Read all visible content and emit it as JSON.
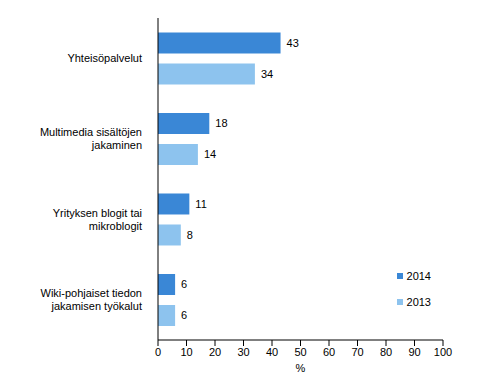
{
  "chart_data": {
    "type": "bar",
    "orientation": "horizontal",
    "categories": [
      "Yhteisöpalvelut",
      "Multimedia sisältöjen jakaminen",
      "Yrityksen blogit tai mikroblogit",
      "Wiki-pohjaiset tiedon jakamisen työkalut"
    ],
    "series": [
      {
        "name": "2014",
        "color": "#3a87d6",
        "values": [
          43,
          18,
          11,
          6
        ]
      },
      {
        "name": "2013",
        "color": "#8dc3ee",
        "values": [
          34,
          14,
          8,
          6
        ]
      }
    ],
    "xlabel": "%",
    "xlim": [
      0,
      100
    ],
    "xticks": [
      0,
      10,
      20,
      30,
      40,
      50,
      60,
      70,
      80,
      90,
      100
    ],
    "grid": false,
    "data_labels": true,
    "legend": "lower right"
  }
}
